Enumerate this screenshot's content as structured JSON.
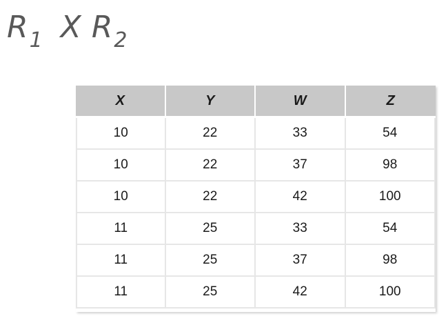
{
  "title": {
    "left_operand": "R",
    "left_subscript": "1",
    "operator": "X",
    "right_operand": "R",
    "right_subscript": "2"
  },
  "table": {
    "headers": [
      "X",
      "Y",
      "W",
      "Z"
    ],
    "rows": [
      [
        "10",
        "22",
        "33",
        "54"
      ],
      [
        "10",
        "22",
        "37",
        "98"
      ],
      [
        "10",
        "22",
        "42",
        "100"
      ],
      [
        "11",
        "25",
        "33",
        "54"
      ],
      [
        "11",
        "25",
        "37",
        "98"
      ],
      [
        "11",
        "25",
        "42",
        "100"
      ]
    ]
  }
}
